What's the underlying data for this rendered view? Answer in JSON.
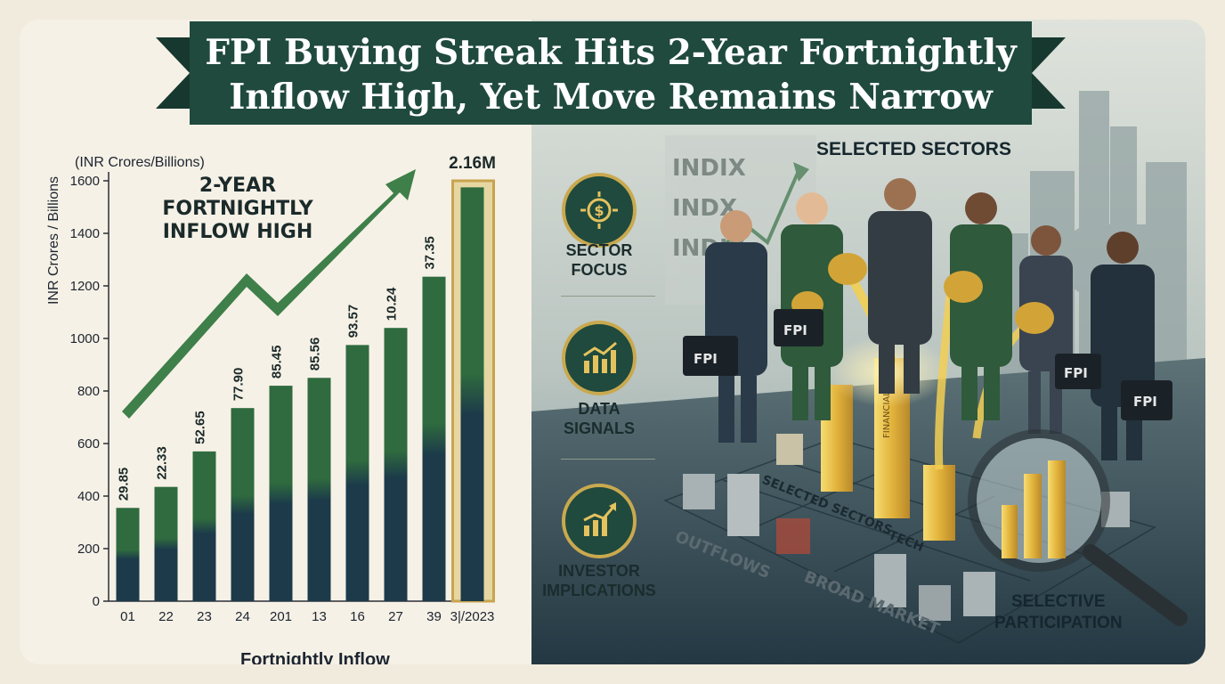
{
  "title": "FPI Buying Streak Hits 2-Year Fortnightly Inflow High, Yet Move Remains Narrow",
  "chart_data": {
    "type": "bar",
    "unit_note": "(INR Crores/Billions)",
    "ylabel": "INR Crores / Billions",
    "xlabel": "Fortnightly Inflow",
    "ylim": [
      0,
      1600
    ],
    "yticks": [
      0,
      200,
      400,
      600,
      800,
      1000,
      1200,
      1400,
      1600
    ],
    "grid": false,
    "categories": [
      "01",
      "22",
      "23",
      "24",
      "201",
      "13",
      "16",
      "27",
      "39",
      "3|/2023"
    ],
    "values": [
      355,
      435,
      570,
      735,
      820,
      850,
      975,
      1040,
      1235,
      1575
    ],
    "data_labels": [
      "29.85",
      "22.33",
      "52.65",
      "77.90",
      "85.45",
      "85.56",
      "93.57",
      "10.24",
      "37.35",
      "2.16M"
    ],
    "highlight_index": 9,
    "highlight_label": "Fortnightly Inflow",
    "annotation": "2-YEAR\nFORTNIGHTLY\nINFLOW HIGH",
    "colors": {
      "bar_top": "#2f6b3e",
      "bar_bottom": "#1c3a4a",
      "highlight_bg": "#e6d6a2",
      "highlight_border": "#c8a450",
      "arrow": "#3f7f4a"
    }
  },
  "scene": {
    "selected_sectors_heading": "SELECTED SECTORS",
    "sidebar": [
      {
        "icon": "coin-gear-icon",
        "label": "SECTOR\nFOCUS"
      },
      {
        "icon": "bar-chart-icon",
        "label": "DATA\nSIGNALS"
      },
      {
        "icon": "growth-chart-icon",
        "label": "INVESTOR\nIMPLICATIONS"
      }
    ],
    "board_text": [
      "INDIX",
      "INDX",
      "INDIX"
    ],
    "briefcase_label": "FPI",
    "pillar_label": "FINANCIALE",
    "grid_labels": {
      "selected_sectors": "SELECTED SECTORS",
      "tech": "TECH",
      "outflows": "OUTFLOWS",
      "broad_market": "BROAD MARKET"
    },
    "selective_participation": "SELECTIVE\nPARTICIPATION"
  }
}
